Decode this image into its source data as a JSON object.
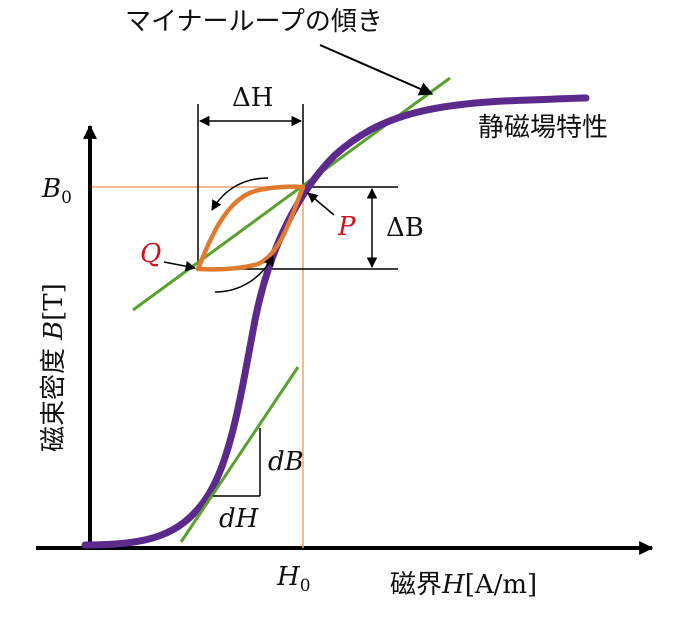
{
  "labels": {
    "minor_loop_slope": "マイナーループの傾き",
    "static_characteristic": "静磁場特性",
    "y_axis_jp": "磁束密度",
    "y_axis_var": "B",
    "y_axis_unit": "[T]",
    "x_axis_jp": "磁界",
    "x_axis_var": "H",
    "x_axis_unit": "[A/m]",
    "delta_h": "ΔH",
    "delta_b": "ΔB",
    "point_p": "P",
    "point_q": "Q",
    "b0_var": "B",
    "b0_sub": "0",
    "h0_var": "H",
    "h0_sub": "0",
    "db": "dB",
    "dh": "dH"
  },
  "colors": {
    "magnetization_curve": "#5b2a8c",
    "minor_loop": "#e07a2e",
    "tangent_lines": "#5aa02c",
    "guide_lines": "#f2a46a",
    "point_labels": "#d1121a",
    "axes": "#000000"
  }
}
